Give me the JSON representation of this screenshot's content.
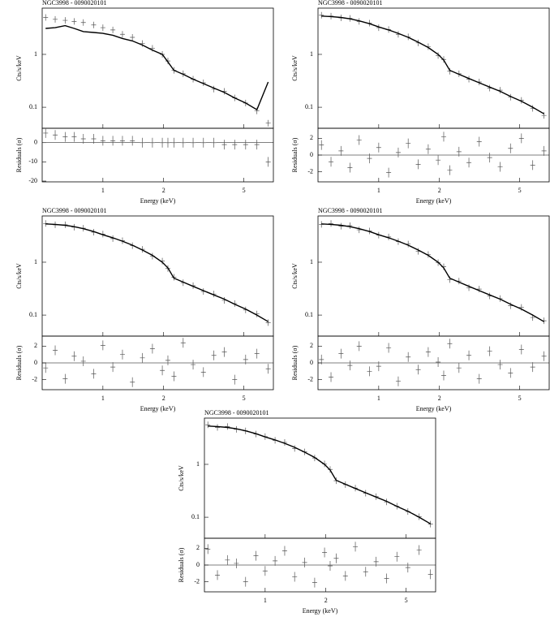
{
  "chart_data": [
    {
      "type": "spectrum",
      "title": "NGC3998 - 0090020101",
      "xlabel": "Energy (keV)",
      "ylabel": "Cts/s/keV",
      "resid_ylabel": "Residuals (σ)",
      "log": true,
      "color": "#000000",
      "point_color": "#555555",
      "xlim": [
        0.5,
        7
      ],
      "xticks": [
        1,
        2,
        5
      ],
      "ylim": [
        0.04,
        7.5
      ],
      "yticks": [
        0.1,
        1
      ],
      "resid_ylim": [
        -20.4,
        7.5
      ],
      "resid_yticks": [
        -20,
        -10,
        0
      ],
      "x": [
        0.52,
        0.58,
        0.65,
        0.72,
        0.8,
        0.9,
        1.0,
        1.12,
        1.25,
        1.4,
        1.57,
        1.76,
        1.97,
        2.1,
        2.25,
        2.5,
        2.8,
        3.15,
        3.55,
        4.0,
        4.5,
        5.1,
        5.8,
        6.6
      ],
      "model": [
        3.1,
        3.2,
        3.5,
        3.1,
        2.7,
        2.6,
        2.5,
        2.3,
        2.0,
        1.8,
        1.5,
        1.2,
        1.0,
        0.72,
        0.5,
        0.42,
        0.34,
        0.28,
        0.23,
        0.19,
        0.15,
        0.12,
        0.09,
        0.3
      ],
      "data": [
        5.0,
        4.6,
        4.4,
        4.2,
        4.0,
        3.6,
        3.2,
        2.9,
        2.4,
        2.1,
        1.6,
        1.3,
        1.0,
        0.75,
        0.5,
        0.43,
        0.34,
        0.29,
        0.22,
        0.2,
        0.15,
        0.12,
        0.085,
        0.05
      ],
      "residuals": [
        5,
        4,
        3,
        3,
        2,
        2,
        1,
        1,
        1,
        1,
        0,
        0,
        0,
        0,
        0,
        0,
        0,
        0,
        0,
        -1,
        -1,
        -1,
        -1,
        -10
      ]
    },
    {
      "type": "spectrum",
      "title": "NGC3998 - 0090020101",
      "xlabel": "Energy (keV)",
      "ylabel": "Cts/s/keV",
      "resid_ylabel": "Residuals (σ)",
      "log": true,
      "color": "#000000",
      "point_color": "#555555",
      "xlim": [
        0.5,
        7
      ],
      "xticks": [
        1,
        2,
        5
      ],
      "ylim": [
        0.04,
        7.5
      ],
      "yticks": [
        0.1,
        1
      ],
      "resid_ylim": [
        -3.2,
        3.2
      ],
      "resid_yticks": [
        -2,
        0,
        2
      ],
      "x": [
        0.52,
        0.58,
        0.65,
        0.72,
        0.8,
        0.9,
        1.0,
        1.12,
        1.25,
        1.4,
        1.57,
        1.76,
        1.97,
        2.1,
        2.25,
        2.5,
        2.8,
        3.15,
        3.55,
        4.0,
        4.5,
        5.1,
        5.8,
        6.6
      ],
      "model": [
        5.3,
        5.2,
        5.0,
        4.7,
        4.3,
        3.8,
        3.3,
        2.9,
        2.5,
        2.1,
        1.7,
        1.35,
        1.0,
        0.78,
        0.5,
        0.42,
        0.35,
        0.29,
        0.24,
        0.2,
        0.16,
        0.13,
        0.1,
        0.075
      ],
      "data": [
        5.5,
        5.3,
        4.9,
        4.8,
        4.2,
        3.9,
        3.2,
        2.95,
        2.4,
        2.15,
        1.65,
        1.4,
        0.95,
        0.8,
        0.48,
        0.43,
        0.34,
        0.3,
        0.23,
        0.21,
        0.155,
        0.135,
        0.095,
        0.07
      ],
      "residuals": [
        1.2,
        -0.8,
        0.5,
        -1.5,
        1.8,
        -0.4,
        0.9,
        -2.1,
        0.3,
        1.4,
        -1.1,
        0.7,
        -0.6,
        2.2,
        -1.8,
        0.4,
        -0.9,
        1.6,
        -0.3,
        -1.4,
        0.8,
        2.0,
        -1.2,
        0.5
      ]
    },
    {
      "type": "spectrum",
      "title": "NGC3998 - 0090020101",
      "xlabel": "Energy (keV)",
      "ylabel": "Cts/s/keV",
      "resid_ylabel": "Residuals (σ)",
      "log": true,
      "color": "#000000",
      "point_color": "#555555",
      "xlim": [
        0.5,
        7
      ],
      "xticks": [
        1,
        2,
        5
      ],
      "ylim": [
        0.04,
        7.5
      ],
      "yticks": [
        0.1,
        1
      ],
      "resid_ylim": [
        -3.2,
        3.2
      ],
      "resid_yticks": [
        -2,
        0,
        2
      ],
      "x": [
        0.52,
        0.58,
        0.65,
        0.72,
        0.8,
        0.9,
        1.0,
        1.12,
        1.25,
        1.4,
        1.57,
        1.76,
        1.97,
        2.1,
        2.25,
        2.5,
        2.8,
        3.15,
        3.55,
        4.0,
        4.5,
        5.1,
        5.8,
        6.6
      ],
      "model": [
        5.3,
        5.2,
        5.0,
        4.7,
        4.3,
        3.8,
        3.3,
        2.9,
        2.5,
        2.1,
        1.7,
        1.35,
        1.0,
        0.78,
        0.5,
        0.42,
        0.35,
        0.29,
        0.24,
        0.2,
        0.16,
        0.13,
        0.1,
        0.075
      ],
      "data": [
        5.4,
        5.1,
        5.1,
        4.6,
        4.4,
        3.7,
        3.4,
        2.8,
        2.55,
        2.05,
        1.75,
        1.3,
        1.05,
        0.76,
        0.52,
        0.41,
        0.36,
        0.28,
        0.25,
        0.19,
        0.165,
        0.125,
        0.105,
        0.072
      ],
      "residuals": [
        -0.6,
        1.5,
        -1.9,
        0.8,
        0.2,
        -1.3,
        2.1,
        -0.5,
        1.0,
        -2.3,
        0.6,
        1.7,
        -0.9,
        0.3,
        -1.6,
        2.4,
        -0.2,
        -1.1,
        0.9,
        1.3,
        -2.0,
        0.4,
        1.1,
        -0.7
      ]
    },
    {
      "type": "spectrum",
      "title": "NGC3998 - 0090020101",
      "xlabel": "Energy (keV)",
      "ylabel": "Cts/s/keV",
      "resid_ylabel": "Residuals (σ)",
      "log": true,
      "color": "#000000",
      "point_color": "#555555",
      "xlim": [
        0.5,
        7
      ],
      "xticks": [
        1,
        2,
        5
      ],
      "ylim": [
        0.04,
        7.5
      ],
      "yticks": [
        0.1,
        1
      ],
      "resid_ylim": [
        -3.2,
        3.2
      ],
      "resid_yticks": [
        -2,
        0,
        2
      ],
      "x": [
        0.52,
        0.58,
        0.65,
        0.72,
        0.8,
        0.9,
        1.0,
        1.12,
        1.25,
        1.4,
        1.57,
        1.76,
        1.97,
        2.1,
        2.25,
        2.5,
        2.8,
        3.15,
        3.55,
        4.0,
        4.5,
        5.1,
        5.8,
        6.6
      ],
      "model": [
        5.3,
        5.2,
        5.0,
        4.7,
        4.3,
        3.8,
        3.3,
        2.9,
        2.5,
        2.1,
        1.7,
        1.35,
        1.0,
        0.78,
        0.5,
        0.42,
        0.35,
        0.29,
        0.24,
        0.2,
        0.16,
        0.13,
        0.1,
        0.075
      ],
      "data": [
        5.2,
        5.4,
        4.8,
        4.9,
        4.1,
        3.9,
        3.25,
        3.0,
        2.45,
        2.2,
        1.6,
        1.4,
        0.98,
        0.82,
        0.47,
        0.44,
        0.33,
        0.31,
        0.23,
        0.205,
        0.15,
        0.14,
        0.09,
        0.078
      ],
      "residuals": [
        0.4,
        -1.7,
        1.1,
        -0.3,
        2.0,
        -1.0,
        -0.4,
        1.8,
        -2.2,
        0.7,
        -0.8,
        1.3,
        0.1,
        -1.5,
        2.3,
        -0.6,
        0.9,
        -1.9,
        1.4,
        -0.2,
        -1.2,
        1.6,
        -0.5,
        0.8
      ]
    },
    {
      "type": "spectrum",
      "title": "NGC3998 - 0090020101",
      "xlabel": "Energy (keV)",
      "ylabel": "Cts/s/keV",
      "resid_ylabel": "Residuals (σ)",
      "log": true,
      "color": "#000000",
      "point_color": "#555555",
      "xlim": [
        0.5,
        7
      ],
      "xticks": [
        1,
        2,
        5
      ],
      "ylim": [
        0.04,
        7.5
      ],
      "yticks": [
        0.1,
        1
      ],
      "resid_ylim": [
        -3.2,
        3.2
      ],
      "resid_yticks": [
        -2,
        0,
        2
      ],
      "x": [
        0.52,
        0.58,
        0.65,
        0.72,
        0.8,
        0.9,
        1.0,
        1.12,
        1.25,
        1.4,
        1.57,
        1.76,
        1.97,
        2.1,
        2.25,
        2.5,
        2.8,
        3.15,
        3.55,
        4.0,
        4.5,
        5.1,
        5.8,
        6.6
      ],
      "model": [
        5.3,
        5.2,
        5.0,
        4.7,
        4.3,
        3.8,
        3.3,
        2.9,
        2.5,
        2.1,
        1.7,
        1.35,
        1.0,
        0.78,
        0.5,
        0.42,
        0.35,
        0.29,
        0.24,
        0.2,
        0.16,
        0.13,
        0.1,
        0.075
      ],
      "data": [
        5.6,
        5.0,
        5.2,
        4.6,
        4.3,
        3.75,
        3.35,
        2.85,
        2.6,
        2.0,
        1.72,
        1.32,
        1.02,
        0.8,
        0.49,
        0.415,
        0.355,
        0.285,
        0.245,
        0.195,
        0.162,
        0.128,
        0.102,
        0.074
      ],
      "residuals": [
        1.9,
        -1.2,
        0.6,
        0.2,
        -2.0,
        1.1,
        -0.7,
        0.5,
        1.7,
        -1.4,
        0.3,
        -2.1,
        1.5,
        -0.1,
        0.8,
        -1.3,
        2.2,
        -0.8,
        0.4,
        -1.6,
        1.0,
        -0.3,
        1.8,
        -1.1
      ]
    }
  ]
}
